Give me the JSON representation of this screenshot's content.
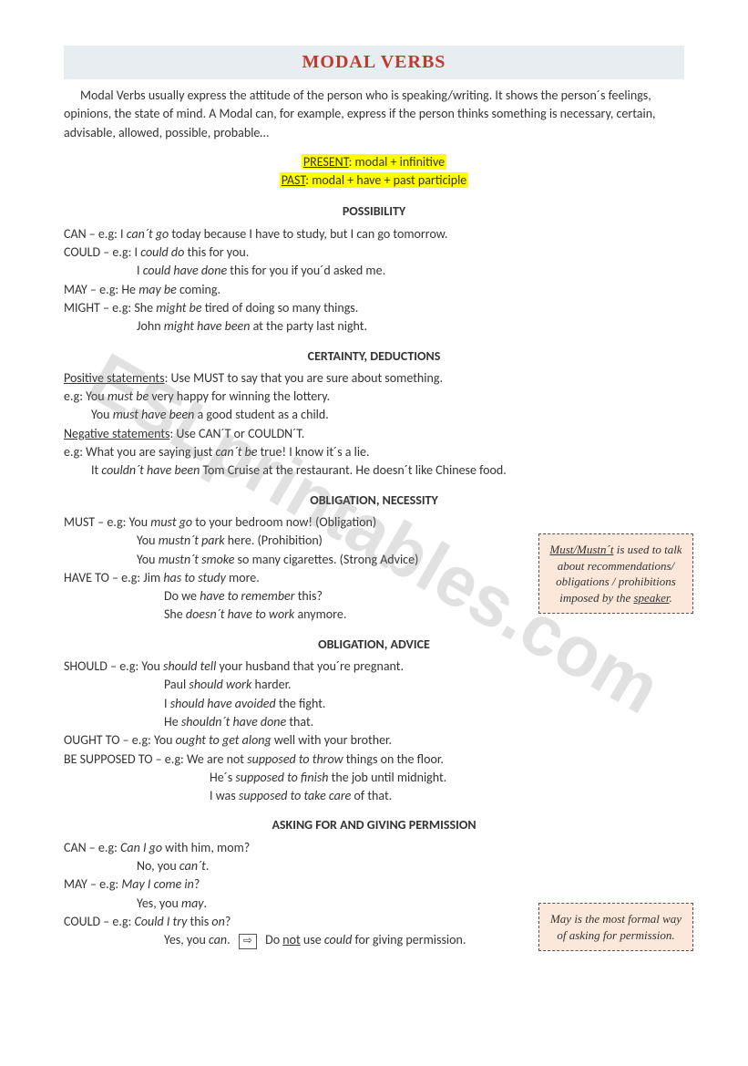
{
  "title": "MODAL VERBS",
  "intro": "Modal Verbs usually express the attitude of the person who is speaking/writing. It shows the person´s feelings, opinions, the state of mind. A Modal can, for example, express if the person thinks something is necessary, certain, advisable, allowed, possible, probable…",
  "formula": {
    "present_label": "PRESENT",
    "present_text": ": modal + infinitive",
    "past_label": "PAST",
    "past_text": ": modal + have + past participle"
  },
  "sections": {
    "possibility": {
      "head": "POSSIBILITY",
      "l1a": "CAN – e.g: I ",
      "l1b": "can´t go",
      "l1c": " today because I have to study, but I can go tomorrow.",
      "l2a": "COULD – e.g: I ",
      "l2b": "could do",
      "l2c": " this for you.",
      "l3a": "I ",
      "l3b": "could have done",
      "l3c": " this for you if you´d asked me.",
      "l4a": "MAY – e.g: He ",
      "l4b": "may be",
      "l4c": " coming.",
      "l5a": "MIGHT – e.g: She ",
      "l5b": "might be",
      "l5c": " tired of doing so many things.",
      "l6a": "John ",
      "l6b": "might have been",
      "l6c": " at the party last night."
    },
    "certainty": {
      "head": "CERTAINTY, DEDUCTIONS",
      "pos_label": "Positive statements",
      "pos_text": ": Use MUST to say that you are sure about something.",
      "p1a": "e.g: You ",
      "p1b": "must be",
      "p1c": " very happy for winning the lottery.",
      "p2a": "You ",
      "p2b": "must have been",
      "p2c": " a good student as a child.",
      "neg_label": "Negative statements",
      "neg_text": ": Use CAN´T or COULDN´T.",
      "n1a": "e.g: What you are saying just ",
      "n1b": "can´t be",
      "n1c": " true! I know it´s a lie.",
      "n2a": "It ",
      "n2b": "couldn´t have been",
      "n2c": " Tom Cruise at the restaurant. He doesn´t like Chinese food."
    },
    "obligation_nec": {
      "head": "OBLIGATION, NECESSITY",
      "l1a": "MUST – e.g: You ",
      "l1b": "must go",
      "l1c": " to your bedroom now! (Obligation)",
      "l2a": "You ",
      "l2b": "mustn´t  park",
      "l2c": " here. (Prohibition)",
      "l3a": "You ",
      "l3b": "mustn´t smoke",
      "l3c": " so many cigarettes. (Strong Advice)",
      "l4a": "HAVE TO – e.g: Jim ",
      "l4b": "has to study",
      "l4c": " more.",
      "l5a": "Do we ",
      "l5b": "have to remember",
      "l5c": " this?",
      "l6a": "She ",
      "l6b": "doesn´t have to work",
      "l6c": " anymore."
    },
    "obligation_adv": {
      "head": "OBLIGATION, ADVICE",
      "l1a": "SHOULD – e.g: You ",
      "l1b": "should tell",
      "l1c": " your husband that you´re pregnant.",
      "l2a": "Paul ",
      "l2b": "should work",
      "l2c": " harder.",
      "l3a": "I ",
      "l3b": "should have avoided",
      "l3c": " the fight.",
      "l4a": "He ",
      "l4b": "shouldn´t have done",
      "l4c": " that.",
      "l5a": "OUGHT TO – e.g: You ",
      "l5b": "ought to get along",
      "l5c": " well with your brother.",
      "l6a": "BE SUPPOSED TO – e.g:  We are not ",
      "l6b": "supposed to throw",
      "l6c": " things on the floor.",
      "l7a": "He´s ",
      "l7b": "supposed to finish",
      "l7c": " the job until midnight.",
      "l8a": "I was ",
      "l8b": "supposed to take care",
      "l8c": " of that."
    },
    "permission": {
      "head": "ASKING FOR AND GIVING PERMISSION",
      "l1a": "CAN – e.g: ",
      "l1b": "Can I go",
      "l1c": " with him, mom?",
      "l2a": "No, you ",
      "l2b": "can´t",
      "l2c": ".",
      "l3a": "MAY – e.g: ",
      "l3b": "May I come in",
      "l3c": "?",
      "l4a": "Yes, you ",
      "l4b": "may",
      "l4c": ".",
      "l5a": "COULD – e.g: ",
      "l5b": "Could I try",
      "l5c": " this ",
      "l5d": "on",
      "l5e": "?",
      "l6a": "Yes, you ",
      "l6b": "can",
      "l6c": ".",
      "l6d": "Do ",
      "l6e": "not",
      "l6f": " use ",
      "l6g": "could",
      "l6h": " for giving permission."
    }
  },
  "box1": {
    "t1": "Must/Mustn´t",
    "t2": " is used to talk about recommendations/ obligations / prohibitions imposed by the ",
    "t3": "speaker",
    "t4": "."
  },
  "box2": {
    "t1": "May",
    "t2": " is the most formal way of asking for permission."
  },
  "watermark": "ESLprintables.com",
  "arrow_glyph": "⇨"
}
